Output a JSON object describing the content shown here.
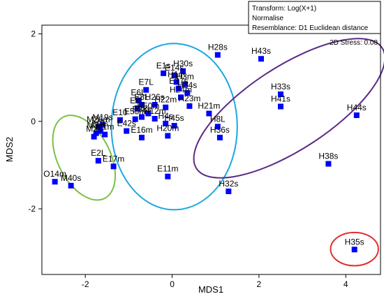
{
  "chart_data": {
    "type": "scatter",
    "xlabel": "MDS1",
    "ylabel": "MDS2",
    "xlim": [
      -3.0,
      4.8
    ],
    "ylim": [
      -3.5,
      2.2
    ],
    "x_ticks": [
      -2,
      0,
      2,
      4
    ],
    "y_ticks": [
      -2,
      0,
      2
    ],
    "x_tick_labels": [
      "-2",
      "0",
      "2",
      "4"
    ],
    "y_tick_labels": [
      "-2",
      "0",
      "2"
    ],
    "grid": false,
    "marker_color": "#0000ff",
    "info_box": [
      "Transform: Log(X+1)",
      "Normalise",
      "Resemblance: D1 Euclidean distance"
    ],
    "stress_label": "2D Stress: 0.08",
    "points": [
      {
        "label": "O14m",
        "x": -2.7,
        "y": -1.38
      },
      {
        "label": "M40s",
        "x": -2.33,
        "y": -1.47
      },
      {
        "label": "E2L",
        "x": -1.7,
        "y": -0.9
      },
      {
        "label": "E17m",
        "x": -1.35,
        "y": -1.03
      },
      {
        "label": "M3s",
        "x": -1.65,
        "y": -0.22
      },
      {
        "label": "M3m",
        "x": -1.75,
        "y": -0.27
      },
      {
        "label": "M19s",
        "x": -1.6,
        "y": -0.08
      },
      {
        "label": "M26m",
        "x": -1.7,
        "y": -0.13
      },
      {
        "label": "M2s",
        "x": -1.8,
        "y": -0.35
      },
      {
        "label": "M1m",
        "x": -1.55,
        "y": -0.3
      },
      {
        "label": "E10",
        "x": -1.2,
        "y": 0.03
      },
      {
        "label": "E42s",
        "x": -1.05,
        "y": -0.22
      },
      {
        "label": "E16m",
        "x": -0.7,
        "y": -0.37
      },
      {
        "label": "E55m",
        "x": -0.85,
        "y": 0.05
      },
      {
        "label": "E38s",
        "x": -0.7,
        "y": 0.1
      },
      {
        "label": "E9L",
        "x": -0.8,
        "y": 0.3
      },
      {
        "label": "E6L",
        "x": -0.78,
        "y": 0.48
      },
      {
        "label": "E8L",
        "x": -0.7,
        "y": 0.38
      },
      {
        "label": "E7L",
        "x": -0.6,
        "y": 0.72
      },
      {
        "label": "H50m",
        "x": -0.55,
        "y": 0.18
      },
      {
        "label": "H26s",
        "x": -0.4,
        "y": 0.38
      },
      {
        "label": "H22m",
        "x": -0.15,
        "y": 0.32
      },
      {
        "label": "H12m",
        "x": -0.4,
        "y": 0.06
      },
      {
        "label": "H4s",
        "x": -0.15,
        "y": -0.05
      },
      {
        "label": "H45s",
        "x": 0.05,
        "y": -0.1
      },
      {
        "label": "H20m",
        "x": -0.1,
        "y": -0.33
      },
      {
        "label": "E11m",
        "x": -0.1,
        "y": -1.26
      },
      {
        "label": "E1s",
        "x": -0.2,
        "y": 1.1
      },
      {
        "label": "E14s",
        "x": 0.05,
        "y": 1.05
      },
      {
        "label": "H30s",
        "x": 0.25,
        "y": 1.15
      },
      {
        "label": "H1m",
        "x": 0.1,
        "y": 0.9
      },
      {
        "label": "H3m",
        "x": 0.3,
        "y": 0.85
      },
      {
        "label": "H34s",
        "x": 0.35,
        "y": 0.65
      },
      {
        "label": "H24m",
        "x": 0.2,
        "y": 0.55
      },
      {
        "label": "H23m",
        "x": 0.4,
        "y": 0.35
      },
      {
        "label": "E37s",
        "x": 0.15,
        "y": 0.75
      },
      {
        "label": "H21m",
        "x": 0.85,
        "y": 0.18
      },
      {
        "label": "H8L",
        "x": 1.05,
        "y": -0.12
      },
      {
        "label": "H36s",
        "x": 1.1,
        "y": -0.37
      },
      {
        "label": "H32s",
        "x": 1.3,
        "y": -1.6
      },
      {
        "label": "H28s",
        "x": 1.05,
        "y": 1.52
      },
      {
        "label": "H43s",
        "x": 2.05,
        "y": 1.43
      },
      {
        "label": "H33s",
        "x": 2.5,
        "y": 0.62
      },
      {
        "label": "H41s",
        "x": 2.5,
        "y": 0.34
      },
      {
        "label": "H44s",
        "x": 4.25,
        "y": 0.14
      },
      {
        "label": "H38s",
        "x": 3.6,
        "y": -0.97
      },
      {
        "label": "H35s",
        "x": 4.2,
        "y": -2.93
      }
    ],
    "groups": [
      {
        "color": "#7ac142",
        "cx": -2.03,
        "cy": -0.83,
        "rx": 1.05,
        "ry": 0.6,
        "angle_deg": 63
      },
      {
        "color": "#1aa7df",
        "cx": 0.05,
        "cy": -0.12,
        "rx": 1.45,
        "ry": 1.9,
        "angle_deg": 0
      },
      {
        "color": "#5b2a86",
        "cx": 2.7,
        "cy": 0.3,
        "rx": 2.55,
        "ry": 0.95,
        "angle_deg": -33
      },
      {
        "color": "#e32d2d",
        "cx": 4.2,
        "cy": -2.92,
        "rx": 0.55,
        "ry": 0.38,
        "angle_deg": 0
      }
    ]
  }
}
